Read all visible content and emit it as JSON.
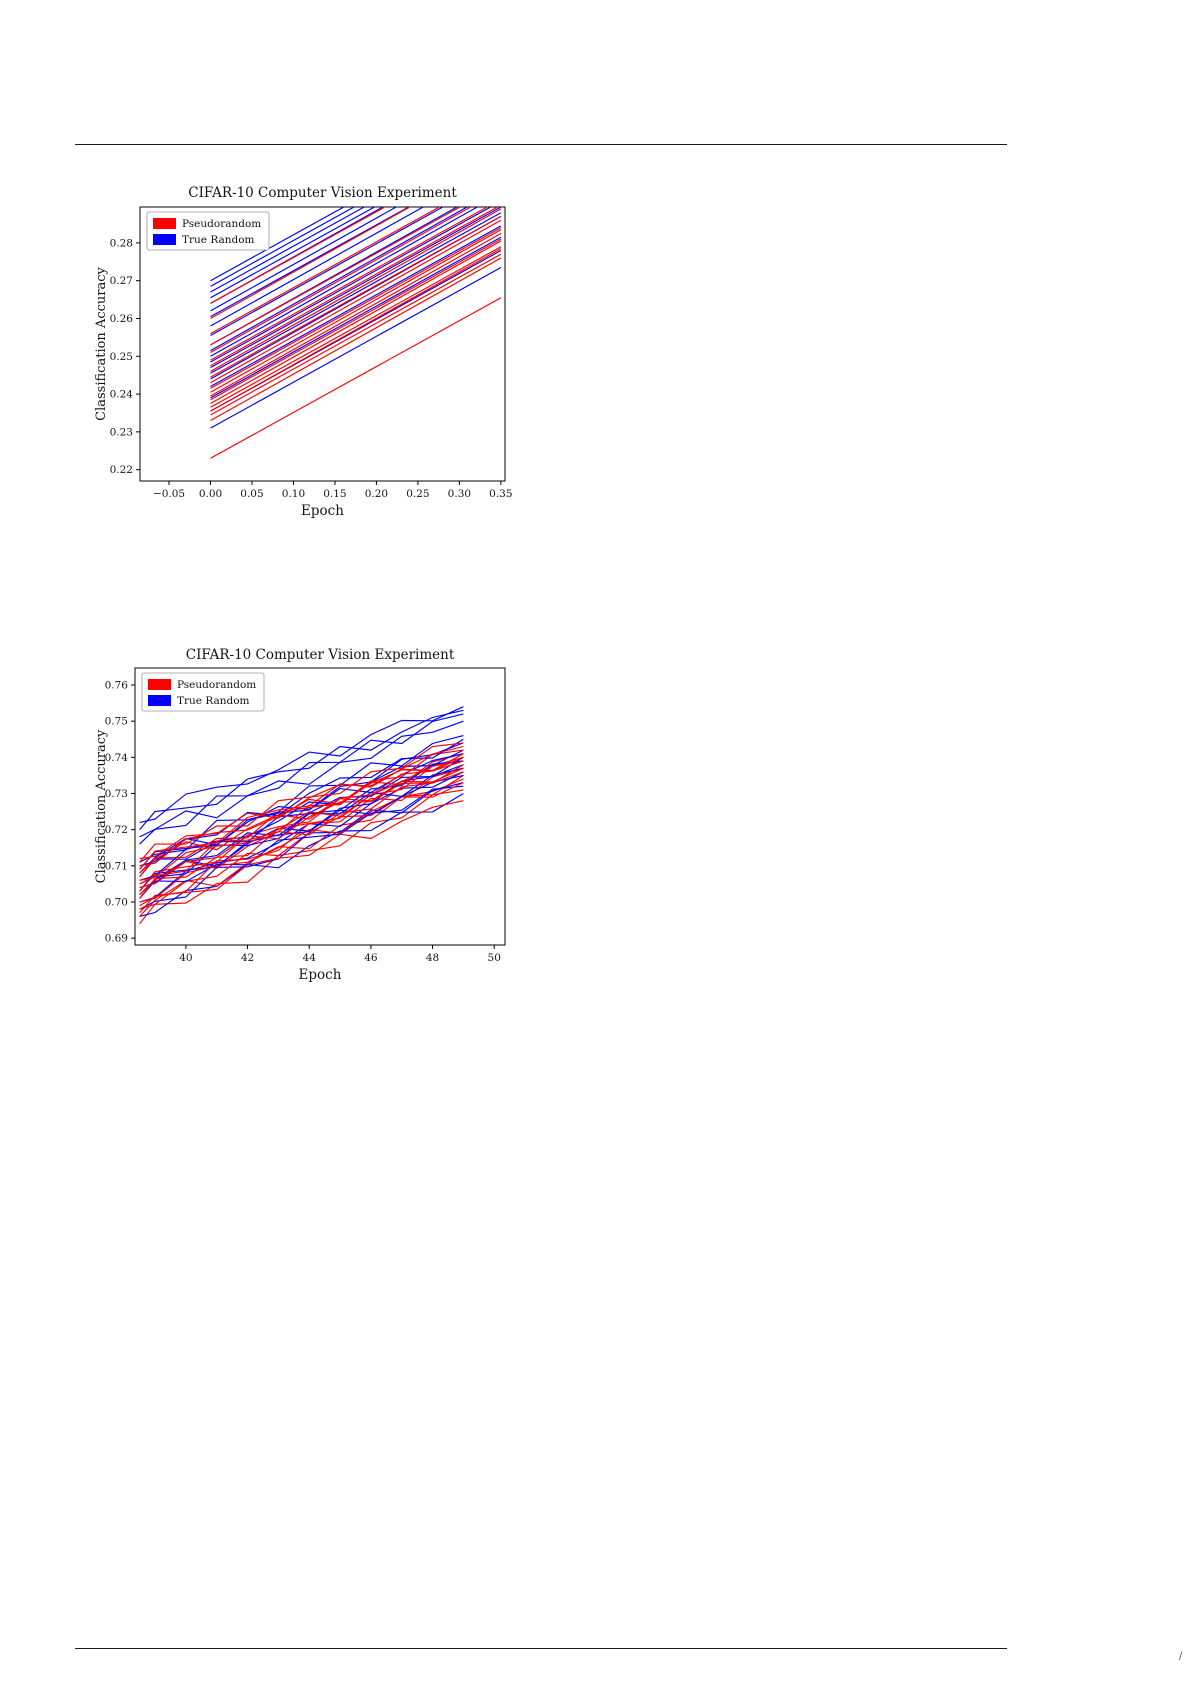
{
  "page": {
    "background": "#ffffff",
    "footer_mark": "/"
  },
  "chart_data": [
    {
      "name": "figure-1",
      "type": "line",
      "title": "CIFAR-10 Computer Vision Experiment",
      "xlabel": "Epoch",
      "ylabel": "Classification Accuracy",
      "legend": {
        "position": "upper left",
        "entries": [
          {
            "label": "Pseudorandom",
            "color": "#ff0000"
          },
          {
            "label": "True Random",
            "color": "#0000ff"
          }
        ]
      },
      "colors": {
        "red": "#ff0000",
        "blue": "#0000ff"
      },
      "xlim": [
        -0.085,
        0.355
      ],
      "ylim": [
        0.217,
        0.2895
      ],
      "grid": false,
      "xticks": [
        {
          "v": -0.05,
          "l": "−0.05"
        },
        {
          "v": 0.0,
          "l": "0.00"
        },
        {
          "v": 0.05,
          "l": "0.05"
        },
        {
          "v": 0.1,
          "l": "0.10"
        },
        {
          "v": 0.15,
          "l": "0.15"
        },
        {
          "v": 0.2,
          "l": "0.20"
        },
        {
          "v": 0.25,
          "l": "0.25"
        },
        {
          "v": 0.3,
          "l": "0.30"
        },
        {
          "v": 0.35,
          "l": "0.35"
        }
      ],
      "yticks": [
        {
          "v": 0.22,
          "l": "0.22"
        },
        {
          "v": 0.23,
          "l": "0.23"
        },
        {
          "v": 0.24,
          "l": "0.24"
        },
        {
          "v": 0.25,
          "l": "0.25"
        },
        {
          "v": 0.26,
          "l": "0.26"
        },
        {
          "v": 0.27,
          "l": "0.27"
        },
        {
          "v": 0.28,
          "l": "0.28"
        }
      ],
      "line_x": [
        0.0,
        0.35
      ],
      "lines": [
        {
          "c": "red",
          "a": 0.223,
          "b": 0.2655
        },
        {
          "c": "blue",
          "a": 0.231,
          "b": 0.2735
        },
        {
          "c": "red",
          "a": 0.233,
          "b": 0.276
        },
        {
          "c": "blue",
          "a": 0.2355,
          "b": 0.278
        },
        {
          "c": "red",
          "a": 0.2345,
          "b": 0.277
        },
        {
          "c": "blue",
          "a": 0.239,
          "b": 0.2815
        },
        {
          "c": "red",
          "a": 0.2355,
          "b": 0.2785
        },
        {
          "c": "blue",
          "a": 0.242,
          "b": 0.2845
        },
        {
          "c": "red",
          "a": 0.2365,
          "b": 0.279
        },
        {
          "c": "blue",
          "a": 0.244,
          "b": 0.287
        },
        {
          "c": "red",
          "a": 0.2375,
          "b": 0.2805
        },
        {
          "c": "blue",
          "a": 0.2455,
          "b": 0.288
        },
        {
          "c": "red",
          "a": 0.2385,
          "b": 0.281
        },
        {
          "c": "blue",
          "a": 0.247,
          "b": 0.2895
        },
        {
          "c": "red",
          "a": 0.2395,
          "b": 0.2825
        },
        {
          "c": "blue",
          "a": 0.2485,
          "b": 0.291
        },
        {
          "c": "red",
          "a": 0.2405,
          "b": 0.2835
        },
        {
          "c": "blue",
          "a": 0.25,
          "b": 0.293
        },
        {
          "c": "red",
          "a": 0.2415,
          "b": 0.284
        },
        {
          "c": "blue",
          "a": 0.2515,
          "b": 0.2945
        },
        {
          "c": "red",
          "a": 0.243,
          "b": 0.286
        },
        {
          "c": "blue",
          "a": 0.253,
          "b": 0.296
        },
        {
          "c": "red",
          "a": 0.2445,
          "b": 0.287
        },
        {
          "c": "blue",
          "a": 0.2555,
          "b": 0.298
        },
        {
          "c": "red",
          "a": 0.246,
          "b": 0.289
        },
        {
          "c": "blue",
          "a": 0.258,
          "b": 0.301
        },
        {
          "c": "red",
          "a": 0.2475,
          "b": 0.29
        },
        {
          "c": "blue",
          "a": 0.2605,
          "b": 0.303
        },
        {
          "c": "red",
          "a": 0.249,
          "b": 0.2915
        },
        {
          "c": "blue",
          "a": 0.262,
          "b": 0.305
        },
        {
          "c": "red",
          "a": 0.251,
          "b": 0.294
        },
        {
          "c": "blue",
          "a": 0.264,
          "b": 0.307
        },
        {
          "c": "red",
          "a": 0.253,
          "b": 0.2955
        },
        {
          "c": "blue",
          "a": 0.2655,
          "b": 0.308
        },
        {
          "c": "red",
          "a": 0.256,
          "b": 0.2985
        },
        {
          "c": "blue",
          "a": 0.267,
          "b": 0.3095
        },
        {
          "c": "red",
          "a": 0.26,
          "b": 0.303
        },
        {
          "c": "blue",
          "a": 0.2685,
          "b": 0.311
        },
        {
          "c": "red",
          "a": 0.264,
          "b": 0.3065
        },
        {
          "c": "blue",
          "a": 0.27,
          "b": 0.3125
        }
      ]
    },
    {
      "name": "figure-2",
      "type": "line",
      "title": "CIFAR-10 Computer Vision Experiment",
      "xlabel": "Epoch",
      "ylabel": "Classification Accuracy",
      "legend": {
        "position": "upper left",
        "entries": [
          {
            "label": "Pseudorandom",
            "color": "#ff0000"
          },
          {
            "label": "True Random",
            "color": "#0000ff"
          }
        ]
      },
      "colors": {
        "red": "#ff0000",
        "blue": "#0000ff"
      },
      "xlim": [
        38.35,
        50.35
      ],
      "ylim": [
        0.6881,
        0.7647
      ],
      "grid": false,
      "xticks": [
        {
          "v": 40,
          "l": "40"
        },
        {
          "v": 42,
          "l": "42"
        },
        {
          "v": 44,
          "l": "44"
        },
        {
          "v": 46,
          "l": "46"
        },
        {
          "v": 48,
          "l": "48"
        },
        {
          "v": 50,
          "l": "50"
        }
      ],
      "yticks": [
        {
          "v": 0.69,
          "l": "0.69"
        },
        {
          "v": 0.7,
          "l": "0.70"
        },
        {
          "v": 0.71,
          "l": "0.71"
        },
        {
          "v": 0.72,
          "l": "0.72"
        },
        {
          "v": 0.73,
          "l": "0.73"
        },
        {
          "v": 0.74,
          "l": "0.74"
        },
        {
          "v": 0.75,
          "l": "0.75"
        },
        {
          "v": 0.76,
          "l": "0.76"
        }
      ],
      "x": [
        38.5,
        39,
        40,
        41,
        42,
        43,
        44,
        45,
        46,
        47,
        48,
        49
      ],
      "jitter": [
        [
          0,
          0.002,
          -0.001,
          0.001,
          -0.002,
          0.002,
          0,
          -0.002,
          0.001,
          -0.001,
          0.002,
          0
        ],
        [
          0,
          -0.002,
          0.001,
          -0.001,
          0.002,
          -0.002,
          0.001,
          0.002,
          -0.001,
          0.001,
          -0.002,
          0
        ],
        [
          0,
          0.001,
          0.003,
          -0.002,
          0.001,
          0.002,
          -0.002,
          0.001,
          -0.001,
          0.002,
          0.0,
          0
        ],
        [
          0,
          -0.001,
          -0.003,
          0.002,
          -0.001,
          -0.002,
          0.002,
          -0.001,
          0.002,
          -0.002,
          0.001,
          0
        ],
        [
          0,
          0.002,
          0.0,
          -0.002,
          0.002,
          0.001,
          -0.001,
          0.002,
          -0.002,
          0.0,
          0.001,
          0
        ],
        [
          0,
          -0.002,
          0.002,
          0.001,
          -0.001,
          0.0,
          0.002,
          -0.002,
          0.001,
          0.002,
          -0.001,
          0
        ]
      ],
      "lines": [
        {
          "c": "red",
          "a": 0.694,
          "b": 0.731,
          "p": 0
        },
        {
          "c": "blue",
          "a": 0.696,
          "b": 0.73,
          "p": 1
        },
        {
          "c": "red",
          "a": 0.696,
          "b": 0.734,
          "p": 2
        },
        {
          "c": "blue",
          "a": 0.698,
          "b": 0.733,
          "p": 3
        },
        {
          "c": "red",
          "a": 0.697,
          "b": 0.728,
          "p": 4
        },
        {
          "c": "blue",
          "a": 0.7,
          "b": 0.736,
          "p": 5
        },
        {
          "c": "red",
          "a": 0.698,
          "b": 0.735,
          "p": 1
        },
        {
          "c": "blue",
          "a": 0.701,
          "b": 0.732,
          "p": 0
        },
        {
          "c": "red",
          "a": 0.699,
          "b": 0.737,
          "p": 3
        },
        {
          "c": "blue",
          "a": 0.702,
          "b": 0.738,
          "p": 2
        },
        {
          "c": "red",
          "a": 0.7,
          "b": 0.733,
          "p": 5
        },
        {
          "c": "blue",
          "a": 0.703,
          "b": 0.735,
          "p": 4
        },
        {
          "c": "red",
          "a": 0.701,
          "b": 0.739,
          "p": 0
        },
        {
          "c": "blue",
          "a": 0.704,
          "b": 0.74,
          "p": 1
        },
        {
          "c": "red",
          "a": 0.702,
          "b": 0.736,
          "p": 2
        },
        {
          "c": "blue",
          "a": 0.705,
          "b": 0.737,
          "p": 3
        },
        {
          "c": "red",
          "a": 0.703,
          "b": 0.74,
          "p": 4
        },
        {
          "c": "blue",
          "a": 0.706,
          "b": 0.742,
          "p": 5
        },
        {
          "c": "red",
          "a": 0.704,
          "b": 0.738,
          "p": 1
        },
        {
          "c": "blue",
          "a": 0.707,
          "b": 0.739,
          "p": 0
        },
        {
          "c": "red",
          "a": 0.705,
          "b": 0.741,
          "p": 3
        },
        {
          "c": "blue",
          "a": 0.708,
          "b": 0.744,
          "p": 2
        },
        {
          "c": "red",
          "a": 0.706,
          "b": 0.737,
          "p": 5
        },
        {
          "c": "blue",
          "a": 0.709,
          "b": 0.741,
          "p": 4
        },
        {
          "c": "red",
          "a": 0.707,
          "b": 0.742,
          "p": 0
        },
        {
          "c": "blue",
          "a": 0.71,
          "b": 0.745,
          "p": 1
        },
        {
          "c": "red",
          "a": 0.708,
          "b": 0.739,
          "p": 2
        },
        {
          "c": "blue",
          "a": 0.711,
          "b": 0.746,
          "p": 3
        },
        {
          "c": "red",
          "a": 0.709,
          "b": 0.743,
          "p": 4
        },
        {
          "c": "red",
          "a": 0.71,
          "b": 0.74,
          "p": 5
        },
        {
          "c": "red",
          "a": 0.711,
          "b": 0.744,
          "p": 0
        },
        {
          "c": "red",
          "a": 0.712,
          "b": 0.741,
          "p": 1
        },
        {
          "c": "blue",
          "a": 0.716,
          "b": 0.75,
          "p": 2
        },
        {
          "c": "blue",
          "a": 0.718,
          "b": 0.752,
          "p": 3
        },
        {
          "c": "blue",
          "a": 0.72,
          "b": 0.753,
          "p": 4
        },
        {
          "c": "blue",
          "a": 0.722,
          "b": 0.754,
          "p": 5
        }
      ]
    }
  ]
}
